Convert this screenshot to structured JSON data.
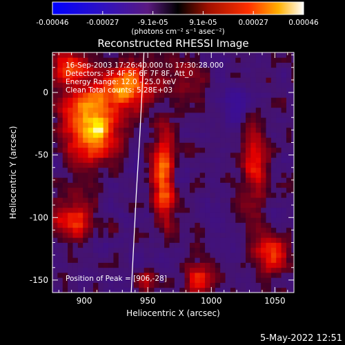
{
  "chart_data": {
    "type": "heatmap",
    "title": "Reconstructed RHESSI Image",
    "xlabel": "Heliocentric X (arcsec)",
    "ylabel": "Heliocentric Y (arcsec)",
    "xlim": [
      875,
      1065
    ],
    "ylim": [
      -160,
      32
    ],
    "x_ticks": [
      900,
      950,
      1000,
      1050
    ],
    "y_ticks": [
      0,
      -50,
      -100,
      -150
    ],
    "colorbar": {
      "ticks": [
        "-0.00046",
        "-0.00027",
        "-9.1e-05",
        "9.1e-05",
        "0.00027",
        "0.00046"
      ],
      "unit_label": "(photons cm⁻² s⁻¹ asec⁻²)",
      "range": [
        -0.00046,
        0.00046
      ],
      "colormap": [
        "#0000ff",
        "#ff0000",
        "#ffff00",
        "#ffffff"
      ]
    },
    "annotations": [
      "16-Sep-2003 17:26:40.000 to 17:30:28.000",
      "Detectors: 3F 4F 5F 6F 7F 8F, Att_0",
      "Energy Range: 12.0 - 25.0 keV",
      "Clean   Total counts: 5.28E+03"
    ],
    "peak_label": "Position of Peak = [906,-28]",
    "peak_position": [
      906,
      -28
    ],
    "limb": [
      [
        947,
        32
      ],
      [
        944,
        -30
      ],
      [
        941,
        -80
      ],
      [
        937,
        -160
      ]
    ],
    "sources": [
      {
        "x": 905,
        "y": -25,
        "sx": 14,
        "sy": 20,
        "amp": 0.00046
      },
      {
        "x": 935,
        "y": 5,
        "sx": 12,
        "sy": 12,
        "amp": 0.00036
      },
      {
        "x": 890,
        "y": 20,
        "sx": 10,
        "sy": 8,
        "amp": 0.00025
      },
      {
        "x": 963,
        "y": -68,
        "sx": 6,
        "sy": 25,
        "amp": 0.0003
      },
      {
        "x": 890,
        "y": -100,
        "sx": 10,
        "sy": 12,
        "amp": 0.00022
      },
      {
        "x": 1048,
        "y": -130,
        "sx": 8,
        "sy": 10,
        "amp": 0.00026
      },
      {
        "x": 1035,
        "y": -60,
        "sx": 7,
        "sy": 30,
        "amp": 0.00018
      },
      {
        "x": 990,
        "y": -150,
        "sx": 8,
        "sy": 8,
        "amp": 0.0002
      },
      {
        "x": 945,
        "y": -150,
        "sx": 6,
        "sy": 6,
        "amp": 0.00015
      },
      {
        "x": 1020,
        "y": -10,
        "sx": 8,
        "sy": 10,
        "amp": -0.00012
      },
      {
        "x": 980,
        "y": 10,
        "sx": 10,
        "sy": 12,
        "amp": 0.00012
      }
    ]
  },
  "footer": {
    "timestamp": "5-May-2022 12:51"
  }
}
